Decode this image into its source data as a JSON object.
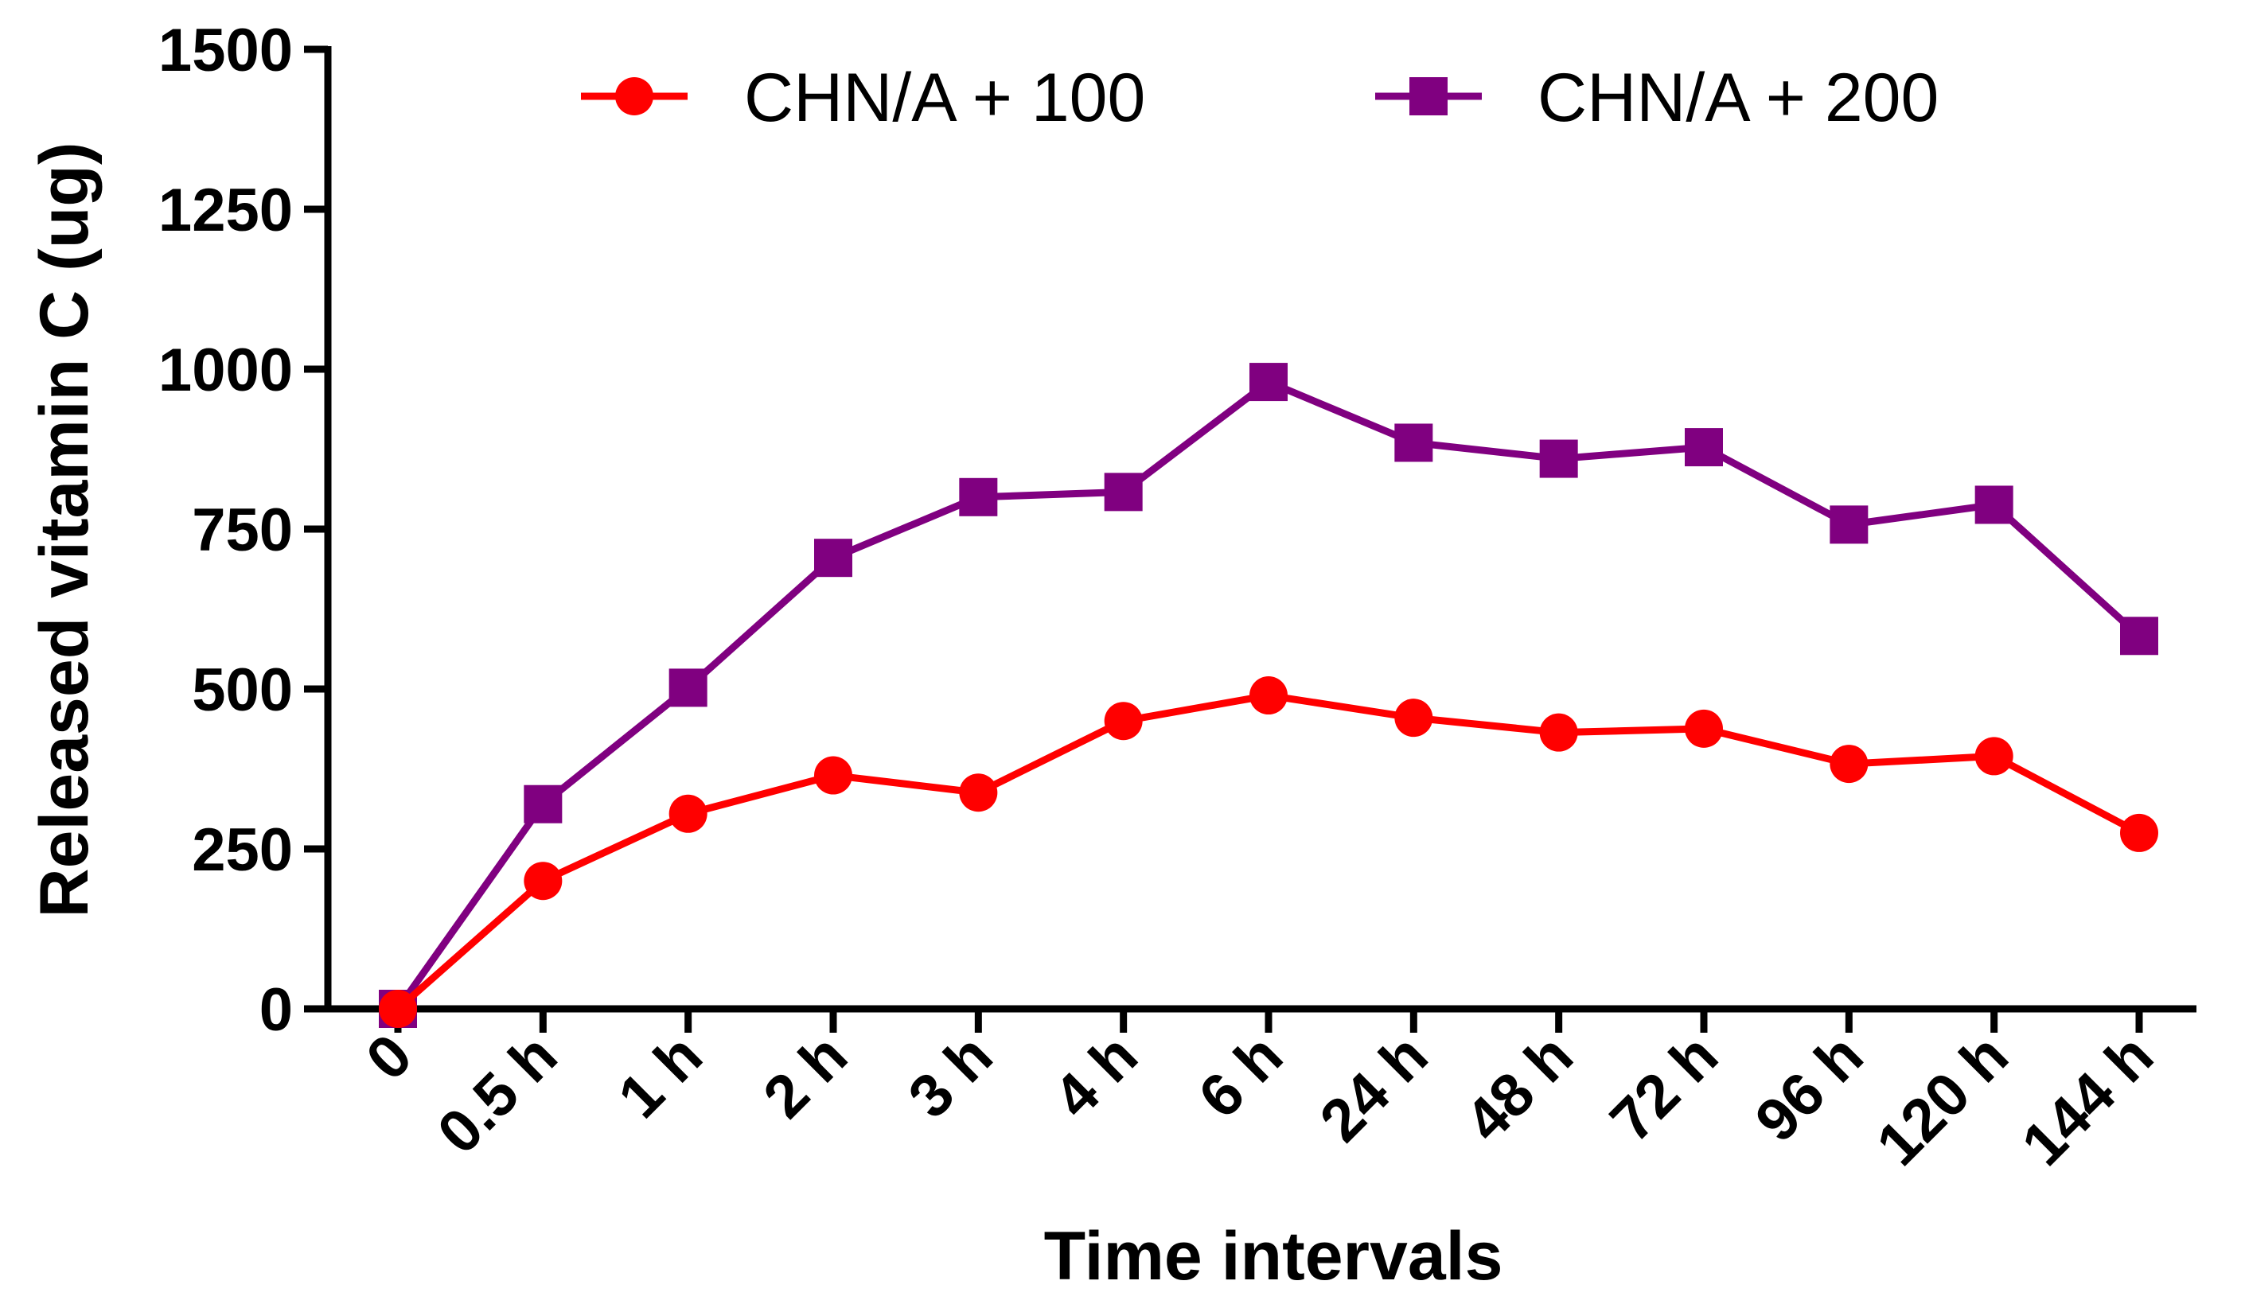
{
  "chart_data": {
    "type": "line",
    "title": "",
    "xlabel": "Time intervals",
    "ylabel": "Released vitamin C (ug)",
    "categories": [
      "0",
      "0.5 h",
      "1 h",
      "2 h",
      "3 h",
      "4 h",
      "6 h",
      "24 h",
      "48 h",
      "72 h",
      "96 h",
      "120 h",
      "144 h"
    ],
    "ylim": [
      0,
      1500
    ],
    "yticks": [
      0,
      250,
      500,
      750,
      1000,
      1250,
      1500
    ],
    "ytick_labels": [
      "0",
      "250",
      "500",
      "750",
      "1000",
      "1250",
      "1500"
    ],
    "grid": false,
    "legend_position": "top",
    "series": [
      {
        "name": "CHN/A + 100",
        "color": "#ff0000",
        "marker": "circle",
        "values": [
          0,
          200,
          305,
          365,
          338,
          450,
          490,
          455,
          432,
          438,
          383,
          395,
          275
        ]
      },
      {
        "name": "CHN/A + 200",
        "color": "#800080",
        "marker": "square",
        "values": [
          0,
          320,
          502,
          705,
          800,
          808,
          980,
          885,
          860,
          878,
          757,
          788,
          583
        ]
      }
    ]
  }
}
